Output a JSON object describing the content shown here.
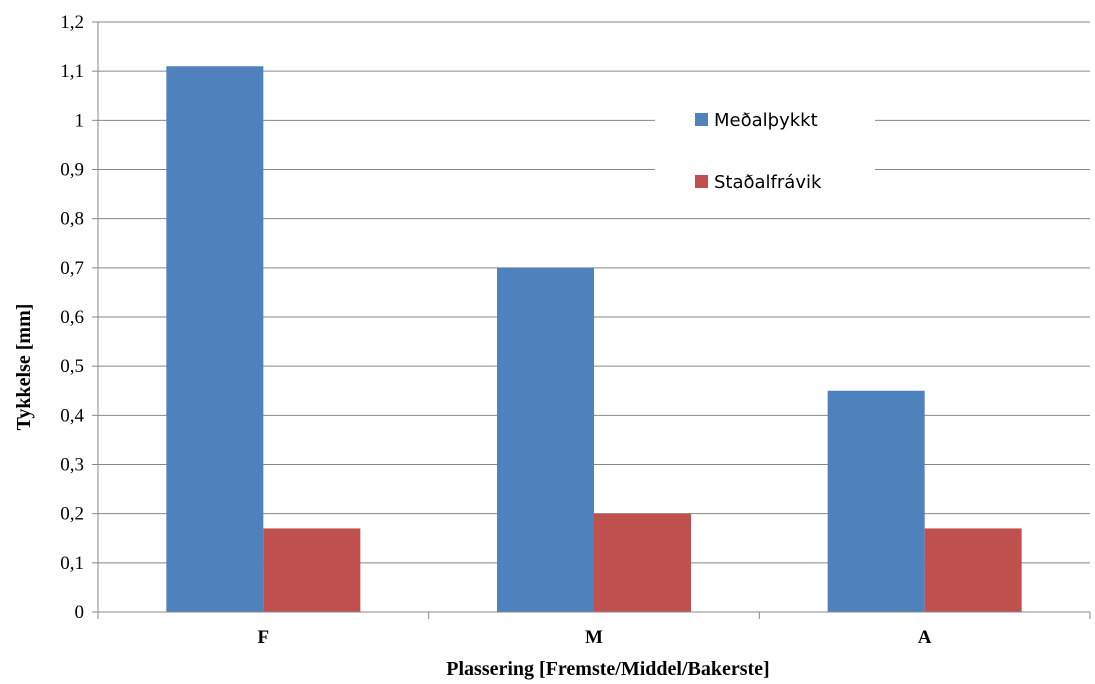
{
  "chart_data": {
    "type": "bar",
    "categories": [
      "F",
      "M",
      "A"
    ],
    "series": [
      {
        "name": "Meðalþykkt",
        "values": [
          1.11,
          0.7,
          0.45
        ],
        "color": "#4f81bd"
      },
      {
        "name": "Staðalfrávik",
        "values": [
          0.17,
          0.2,
          0.17
        ],
        "color": "#c0504d"
      }
    ],
    "xlabel": "Plassering  [Fremste/Middel/Bakerste]",
    "ylabel": "Tykkelse  [mm]",
    "ylim": [
      0,
      1.2
    ],
    "ytick_step": 0.1,
    "ytick_labels": [
      "0",
      "0,1",
      "0,2",
      "0,3",
      "0,4",
      "0,5",
      "0,6",
      "0,7",
      "0,8",
      "0,9",
      "1",
      "1,1",
      "1,2"
    ],
    "grid": true,
    "legend_position": "top-right"
  }
}
